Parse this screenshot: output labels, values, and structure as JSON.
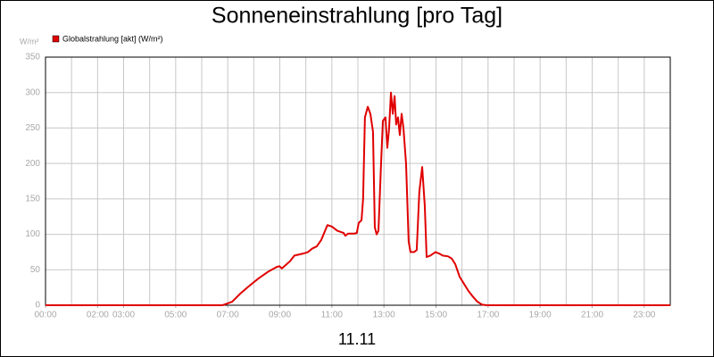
{
  "chart_data": {
    "type": "line",
    "title": "Sonneneinstrahlung [pro Tag]",
    "y_unit": "W/m²",
    "x_caption": "11.11",
    "xlim": [
      0,
      24
    ],
    "ylim": [
      0,
      350
    ],
    "yticks": [
      0,
      50,
      100,
      150,
      200,
      250,
      300,
      350
    ],
    "xticks": [
      {
        "value": 0,
        "label": "00:00"
      },
      {
        "value": 2,
        "label": "02:00"
      },
      {
        "value": 3,
        "label": "03:00"
      },
      {
        "value": 5,
        "label": "05:00"
      },
      {
        "value": 7,
        "label": "07:00"
      },
      {
        "value": 9,
        "label": "09:00"
      },
      {
        "value": 11,
        "label": "11:00"
      },
      {
        "value": 13,
        "label": "13:00"
      },
      {
        "value": 15,
        "label": "15:00"
      },
      {
        "value": 17,
        "label": "17:00"
      },
      {
        "value": 19,
        "label": "19:00"
      },
      {
        "value": 21,
        "label": "21:00"
      },
      {
        "value": 23,
        "label": "23:00"
      }
    ],
    "x_gridlines": [
      1,
      2,
      3,
      4,
      5,
      6,
      7,
      8,
      9,
      10,
      11,
      12,
      13,
      14,
      15,
      16,
      17,
      18,
      19,
      20,
      21,
      22,
      23
    ],
    "grid": true,
    "legend": "top-left",
    "series": [
      {
        "name": "Globalstrahlung [akt] (W/m²)",
        "color": "#e00000",
        "x": [
          0,
          6.8,
          7.17,
          7.5,
          7.85,
          8.19,
          8.54,
          8.88,
          8.98,
          9.08,
          9.39,
          9.56,
          9.91,
          10.08,
          10.25,
          10.42,
          10.59,
          10.83,
          11.0,
          11.21,
          11.45,
          11.52,
          11.62,
          11.86,
          11.96,
          12.03,
          12.14,
          12.2,
          12.27,
          12.38,
          12.48,
          12.58,
          12.65,
          12.72,
          12.79,
          12.89,
          12.96,
          13.06,
          13.13,
          13.2,
          13.27,
          13.34,
          13.41,
          13.47,
          13.54,
          13.61,
          13.68,
          13.75,
          13.85,
          13.95,
          14.02,
          14.16,
          14.26,
          14.36,
          14.47,
          14.57,
          14.64,
          14.78,
          14.98,
          15.12,
          15.26,
          15.46,
          15.6,
          15.74,
          15.91,
          16.08,
          16.25,
          16.42,
          16.59,
          16.76,
          16.94,
          24
        ],
        "values": [
          0,
          0,
          5,
          17,
          28,
          38,
          47,
          54,
          55,
          52,
          62,
          70,
          73,
          75,
          80,
          83,
          92,
          113,
          111,
          105,
          102,
          98,
          101,
          101,
          102,
          116,
          120,
          150,
          265,
          280,
          270,
          245,
          110,
          100,
          105,
          200,
          260,
          265,
          222,
          250,
          300,
          270,
          295,
          255,
          265,
          240,
          270,
          250,
          200,
          90,
          75,
          75,
          78,
          160,
          195,
          140,
          68,
          70,
          75,
          73,
          70,
          69,
          66,
          58,
          40,
          30,
          20,
          12,
          5,
          1,
          0,
          0
        ]
      }
    ]
  }
}
